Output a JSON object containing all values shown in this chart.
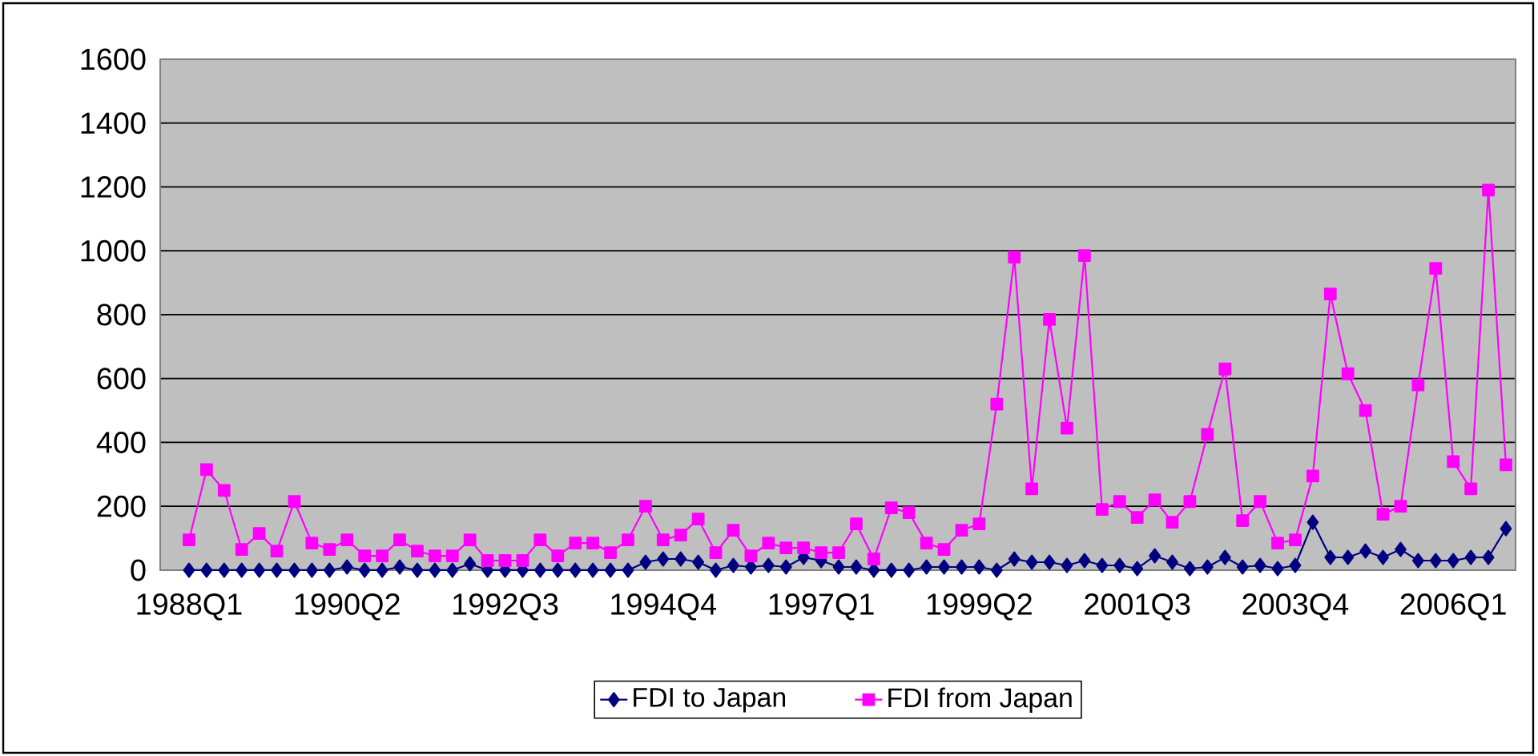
{
  "chart_data": {
    "type": "line",
    "categories": [
      "1988Q1",
      null,
      null,
      null,
      null,
      null,
      null,
      null,
      null,
      "1990Q2",
      null,
      null,
      null,
      null,
      null,
      null,
      null,
      null,
      "1992Q3",
      null,
      null,
      null,
      null,
      null,
      null,
      null,
      null,
      "1994Q4",
      null,
      null,
      null,
      null,
      null,
      null,
      null,
      null,
      "1997Q1",
      null,
      null,
      null,
      null,
      null,
      null,
      null,
      null,
      "1999Q2",
      null,
      null,
      null,
      null,
      null,
      null,
      null,
      null,
      "2001Q3",
      null,
      null,
      null,
      null,
      null,
      null,
      null,
      null,
      "2003Q4",
      null,
      null,
      null,
      null,
      null,
      null,
      null,
      null,
      "2006Q1",
      null,
      null,
      null
    ],
    "series": [
      {
        "name": "FDI to Japan",
        "color": "#000080",
        "marker": "diamond",
        "values": [
          0,
          0,
          0,
          0,
          0,
          0,
          0,
          0,
          0,
          10,
          0,
          0,
          10,
          0,
          0,
          0,
          20,
          0,
          0,
          0,
          0,
          0,
          0,
          0,
          0,
          0,
          25,
          35,
          35,
          25,
          0,
          15,
          10,
          15,
          10,
          40,
          30,
          10,
          10,
          0,
          0,
          0,
          10,
          10,
          10,
          10,
          0,
          35,
          25,
          25,
          15,
          30,
          15,
          15,
          5,
          45,
          25,
          5,
          10,
          40,
          10,
          15,
          5,
          15,
          150,
          40,
          40,
          60,
          40,
          65,
          30,
          30,
          30,
          40,
          40,
          130
        ]
      },
      {
        "name": "FDI from Japan",
        "color": "#ff00ff",
        "marker": "square",
        "values": [
          95,
          315,
          250,
          65,
          115,
          60,
          215,
          85,
          65,
          95,
          45,
          45,
          95,
          60,
          45,
          45,
          95,
          30,
          30,
          30,
          95,
          45,
          85,
          85,
          55,
          95,
          200,
          95,
          110,
          160,
          55,
          125,
          45,
          85,
          70,
          70,
          55,
          55,
          145,
          35,
          195,
          180,
          85,
          65,
          125,
          145,
          520,
          980,
          255,
          785,
          445,
          985,
          190,
          215,
          165,
          220,
          150,
          215,
          425,
          630,
          155,
          215,
          85,
          95,
          295,
          865,
          615,
          500,
          175,
          200,
          580,
          945,
          340,
          255,
          1190,
          330
        ]
      }
    ],
    "ylim": [
      0,
      1600
    ],
    "yticks": [
      0,
      200,
      400,
      600,
      800,
      1000,
      1200,
      1400,
      1600
    ],
    "grid": "y",
    "legend": "bottom",
    "line_style": "solid"
  }
}
